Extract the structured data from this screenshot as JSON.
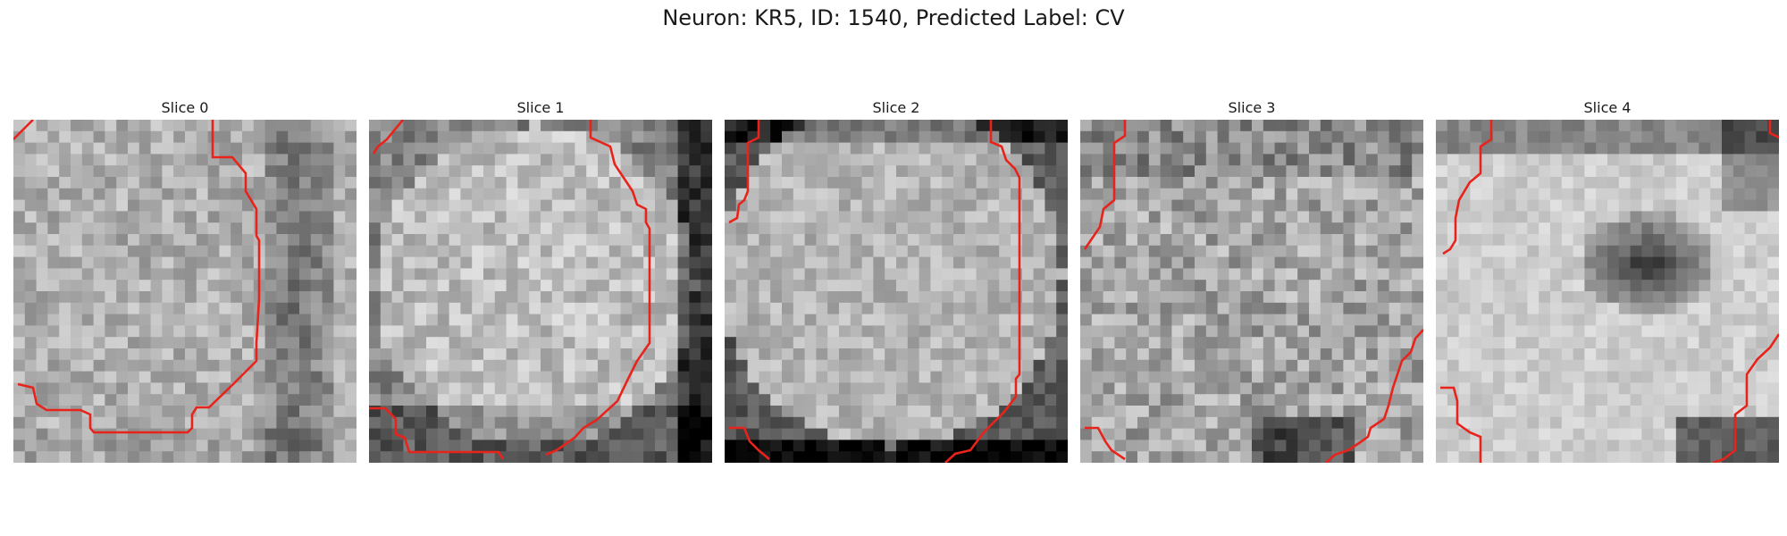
{
  "figure": {
    "title": "Neuron: KR5, ID: 1540, Predicted Label: CV"
  },
  "contour_color": "#e8231c",
  "panels": [
    {
      "title": "Slice 0",
      "theme": "left-blob"
    },
    {
      "title": "Slice 1",
      "theme": "round-blob"
    },
    {
      "title": "Slice 2",
      "theme": "round-blob-dark-edge"
    },
    {
      "title": "Slice 3",
      "theme": "textured"
    },
    {
      "title": "Slice 4",
      "theme": "bright-with-dark-hole"
    }
  ]
}
